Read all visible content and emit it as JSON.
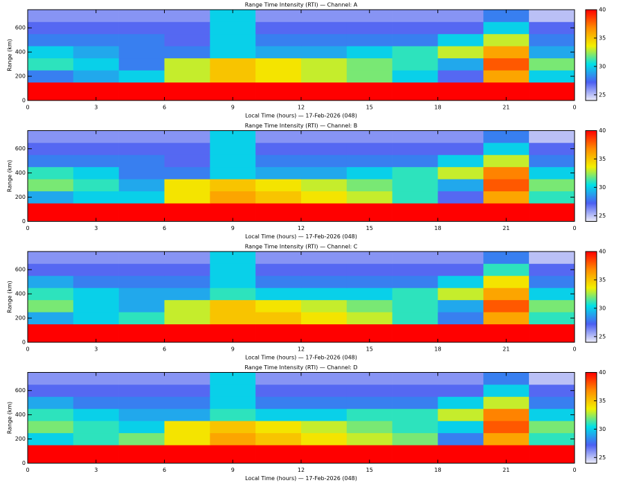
{
  "chart_data": [
    {
      "type": "heatmap",
      "title": "Range Time Intensity (RTI) — Channel: A",
      "xlabel": "Local Time (hours) — 17-Feb-2026 (048)",
      "ylabel": "Range (km)",
      "x_edges": [
        0,
        2,
        4,
        6,
        8,
        10,
        12,
        14,
        16,
        18,
        20,
        22,
        24
      ],
      "y_edges": [
        0,
        150,
        250,
        350,
        450,
        550,
        650,
        750
      ],
      "z": [
        [
          40,
          40,
          40,
          40,
          40,
          40,
          40,
          40,
          40,
          40,
          40,
          40
        ],
        [
          28,
          29,
          30,
          33,
          35,
          34,
          33,
          32,
          30,
          27,
          36,
          30
        ],
        [
          31,
          30,
          28,
          33,
          35,
          34,
          33,
          32,
          31,
          29,
          38,
          32
        ],
        [
          30,
          29,
          28,
          28,
          30,
          29,
          29,
          30,
          31,
          33,
          36,
          29
        ],
        [
          28,
          28,
          28,
          27,
          30,
          28,
          28,
          28,
          28,
          30,
          33,
          28
        ],
        [
          27,
          27,
          27,
          27,
          30,
          27,
          27,
          27,
          27,
          27,
          30,
          27
        ],
        [
          26,
          26,
          26,
          26,
          30,
          26,
          26,
          26,
          26,
          26,
          28,
          25
        ]
      ],
      "xlim": [
        0,
        24
      ],
      "ylim": [
        0,
        750
      ],
      "xticks": [
        0,
        3,
        6,
        9,
        12,
        15,
        18,
        21,
        {
          "value": 24,
          "label": "0"
        }
      ],
      "yticks": [
        0,
        200,
        400,
        600
      ],
      "clim": [
        24,
        40
      ],
      "cticks": [
        25,
        30,
        35,
        40
      ],
      "colormap": [
        "#ececf8",
        "#4b5ff2",
        "#00e0e8",
        "#f2f000",
        "#ff8c00",
        "#ff0000"
      ]
    },
    {
      "type": "heatmap",
      "title": "Range Time Intensity (RTI) — Channel: B",
      "xlabel": "Local Time (hours) — 17-Feb-2026 (048)",
      "ylabel": "Range (km)",
      "x_edges": [
        0,
        2,
        4,
        6,
        8,
        10,
        12,
        14,
        16,
        18,
        20,
        22,
        24
      ],
      "y_edges": [
        0,
        150,
        250,
        350,
        450,
        550,
        650,
        750
      ],
      "z": [
        [
          40,
          40,
          40,
          40,
          40,
          40,
          40,
          40,
          40,
          40,
          40,
          40
        ],
        [
          29,
          30,
          30,
          34,
          36,
          35,
          34,
          33,
          31,
          27,
          36,
          31
        ],
        [
          32,
          31,
          29,
          34,
          35,
          34,
          33,
          32,
          31,
          29,
          38,
          32
        ],
        [
          31,
          30,
          28,
          28,
          30,
          29,
          29,
          30,
          31,
          33,
          37,
          30
        ],
        [
          28,
          28,
          28,
          27,
          30,
          28,
          28,
          28,
          28,
          30,
          33,
          28
        ],
        [
          27,
          27,
          27,
          27,
          30,
          27,
          27,
          27,
          27,
          27,
          30,
          27
        ],
        [
          26,
          26,
          26,
          26,
          30,
          26,
          26,
          26,
          26,
          26,
          28,
          25
        ]
      ],
      "xlim": [
        0,
        24
      ],
      "ylim": [
        0,
        750
      ],
      "xticks": [
        0,
        3,
        6,
        9,
        12,
        15,
        18,
        21,
        {
          "value": 24,
          "label": "0"
        }
      ],
      "yticks": [
        0,
        200,
        400,
        600
      ],
      "clim": [
        24,
        40
      ],
      "cticks": [
        25,
        30,
        35,
        40
      ],
      "colormap": [
        "#ececf8",
        "#4b5ff2",
        "#00e0e8",
        "#f2f000",
        "#ff8c00",
        "#ff0000"
      ]
    },
    {
      "type": "heatmap",
      "title": "Range Time Intensity (RTI) — Channel: C",
      "xlabel": "Local Time (hours) — 17-Feb-2026 (048)",
      "ylabel": "Range (km)",
      "x_edges": [
        0,
        2,
        4,
        6,
        8,
        10,
        12,
        14,
        16,
        18,
        20,
        22,
        24
      ],
      "y_edges": [
        0,
        150,
        250,
        350,
        450,
        550,
        650,
        750
      ],
      "z": [
        [
          40,
          40,
          40,
          40,
          40,
          40,
          40,
          40,
          40,
          40,
          40,
          40
        ],
        [
          29,
          30,
          31,
          33,
          35,
          35,
          34,
          33,
          31,
          28,
          36,
          31
        ],
        [
          32,
          30,
          29,
          33,
          35,
          34,
          33,
          32,
          31,
          29,
          38,
          32
        ],
        [
          31,
          30,
          29,
          29,
          31,
          30,
          30,
          30,
          31,
          33,
          36,
          30
        ],
        [
          29,
          28,
          28,
          28,
          30,
          28,
          28,
          28,
          28,
          30,
          34,
          28
        ],
        [
          27,
          27,
          27,
          27,
          30,
          27,
          27,
          27,
          27,
          27,
          31,
          27
        ],
        [
          26,
          26,
          26,
          26,
          30,
          26,
          26,
          26,
          26,
          26,
          28,
          25
        ]
      ],
      "xlim": [
        0,
        24
      ],
      "ylim": [
        0,
        750
      ],
      "xticks": [
        0,
        3,
        6,
        9,
        12,
        15,
        18,
        21,
        {
          "value": 24,
          "label": "0"
        }
      ],
      "yticks": [
        0,
        200,
        400,
        600
      ],
      "clim": [
        24,
        40
      ],
      "cticks": [
        25,
        30,
        35,
        40
      ],
      "colormap": [
        "#ececf8",
        "#4b5ff2",
        "#00e0e8",
        "#f2f000",
        "#ff8c00",
        "#ff0000"
      ]
    },
    {
      "type": "heatmap",
      "title": "Range Time Intensity (RTI) — Channel: D",
      "xlabel": "Local Time (hours) — 17-Feb-2026 (048)",
      "ylabel": "Range (km)",
      "x_edges": [
        0,
        2,
        4,
        6,
        8,
        10,
        12,
        14,
        16,
        18,
        20,
        22,
        24
      ],
      "y_edges": [
        0,
        150,
        250,
        350,
        450,
        550,
        650,
        750
      ],
      "z": [
        [
          40,
          40,
          40,
          40,
          40,
          40,
          40,
          40,
          40,
          40,
          40,
          40
        ],
        [
          30,
          31,
          32,
          34,
          36,
          35,
          34,
          33,
          32,
          28,
          36,
          31
        ],
        [
          32,
          31,
          30,
          34,
          35,
          34,
          33,
          32,
          31,
          30,
          38,
          32
        ],
        [
          31,
          30,
          29,
          29,
          31,
          30,
          30,
          31,
          31,
          33,
          37,
          30
        ],
        [
          29,
          28,
          28,
          28,
          30,
          28,
          28,
          28,
          28,
          30,
          33,
          28
        ],
        [
          27,
          27,
          27,
          27,
          30,
          27,
          27,
          27,
          27,
          27,
          30,
          27
        ],
        [
          26,
          26,
          26,
          26,
          30,
          26,
          26,
          26,
          26,
          26,
          28,
          25
        ]
      ],
      "xlim": [
        0,
        24
      ],
      "ylim": [
        0,
        750
      ],
      "xticks": [
        0,
        3,
        6,
        9,
        12,
        15,
        18,
        21,
        {
          "value": 24,
          "label": "0"
        }
      ],
      "yticks": [
        0,
        200,
        400,
        600
      ],
      "clim": [
        24,
        40
      ],
      "cticks": [
        25,
        30,
        35,
        40
      ],
      "colormap": [
        "#ececf8",
        "#4b5ff2",
        "#00e0e8",
        "#f2f000",
        "#ff8c00",
        "#ff0000"
      ]
    }
  ]
}
